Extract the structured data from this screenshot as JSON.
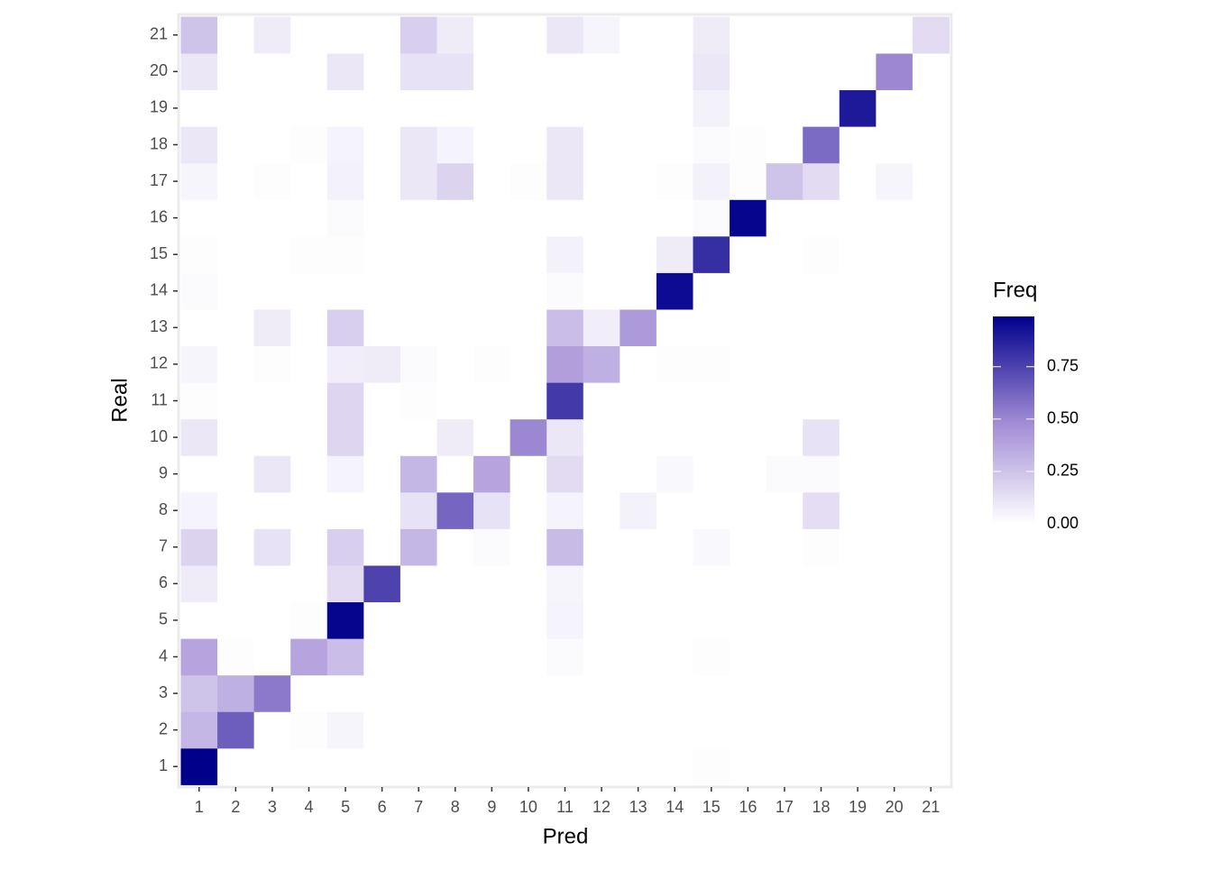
{
  "chart_data": {
    "type": "heatmap",
    "x_label": "Pred",
    "y_label": "Real",
    "legend_title": "Freq",
    "x": [
      1,
      2,
      3,
      4,
      5,
      6,
      7,
      8,
      9,
      10,
      11,
      12,
      13,
      14,
      15,
      16,
      17,
      18,
      19,
      20,
      21
    ],
    "y": [
      1,
      2,
      3,
      4,
      5,
      6,
      7,
      8,
      9,
      10,
      11,
      12,
      13,
      14,
      15,
      16,
      17,
      18,
      19,
      20,
      21
    ],
    "z": [
      [
        0.99,
        0,
        0,
        0,
        0,
        0,
        0,
        0,
        0,
        0,
        0,
        0,
        0,
        0,
        0.01,
        0,
        0,
        0,
        0,
        0,
        0
      ],
      [
        0.3,
        0.65,
        0,
        0.01,
        0.04,
        0,
        0,
        0,
        0,
        0,
        0,
        0,
        0,
        0,
        0,
        0,
        0,
        0,
        0,
        0,
        0
      ],
      [
        0.25,
        0.33,
        0.55,
        0,
        0,
        0,
        0,
        0,
        0,
        0,
        0,
        0,
        0,
        0,
        0,
        0,
        0,
        0,
        0,
        0,
        0
      ],
      [
        0.38,
        0.01,
        0,
        0.38,
        0.27,
        0,
        0,
        0,
        0,
        0,
        0.02,
        0,
        0,
        0,
        0.01,
        0,
        0,
        0,
        0,
        0,
        0
      ],
      [
        0,
        0,
        0,
        0.01,
        0.97,
        0,
        0,
        0,
        0,
        0,
        0.05,
        0,
        0,
        0,
        0,
        0,
        0,
        0,
        0,
        0,
        0
      ],
      [
        0.08,
        0,
        0,
        0,
        0.15,
        0.75,
        0,
        0,
        0,
        0,
        0.04,
        0,
        0,
        0,
        0,
        0,
        0,
        0,
        0,
        0,
        0
      ],
      [
        0.18,
        0,
        0.12,
        0,
        0.2,
        0,
        0.3,
        0,
        0.02,
        0,
        0.28,
        0,
        0,
        0,
        0.03,
        0,
        0,
        0.01,
        0,
        0,
        0
      ],
      [
        0.05,
        0,
        0,
        0,
        0,
        0,
        0.12,
        0.62,
        0.12,
        0,
        0.05,
        0,
        0.06,
        0,
        0,
        0,
        0,
        0.14,
        0,
        0,
        0
      ],
      [
        0,
        0,
        0.1,
        0,
        0.05,
        0,
        0.3,
        0,
        0.38,
        0,
        0.15,
        0,
        0,
        0.03,
        0,
        0,
        0.02,
        0.02,
        0,
        0,
        0
      ],
      [
        0.1,
        0,
        0,
        0,
        0.17,
        0,
        0,
        0.08,
        0,
        0.5,
        0.1,
        0,
        0,
        0,
        0,
        0,
        0,
        0.12,
        0,
        0,
        0
      ],
      [
        0.01,
        0,
        0,
        0,
        0.17,
        0,
        0.01,
        0,
        0,
        0,
        0.78,
        0,
        0,
        0,
        0,
        0,
        0,
        0,
        0,
        0,
        0
      ],
      [
        0.04,
        0,
        0.01,
        0,
        0.07,
        0.08,
        0.02,
        0,
        0.01,
        0,
        0.4,
        0.33,
        0,
        0.01,
        0.01,
        0,
        0,
        0,
        0,
        0,
        0
      ],
      [
        0,
        0,
        0.08,
        0,
        0.2,
        0,
        0,
        0,
        0,
        0,
        0.27,
        0.07,
        0.42,
        0,
        0,
        0,
        0,
        0,
        0,
        0,
        0
      ],
      [
        0.02,
        0,
        0,
        0,
        0,
        0,
        0,
        0,
        0,
        0,
        0.02,
        0,
        0,
        0.95,
        0,
        0,
        0,
        0,
        0,
        0,
        0
      ],
      [
        0.01,
        0,
        0,
        0.01,
        0.01,
        0,
        0,
        0,
        0,
        0,
        0.06,
        0,
        0,
        0.08,
        0.82,
        0,
        0,
        0.01,
        0,
        0,
        0
      ],
      [
        0,
        0,
        0,
        0,
        0.02,
        0,
        0,
        0,
        0,
        0,
        0,
        0,
        0,
        0,
        0.02,
        0.97,
        0,
        0,
        0,
        0,
        0
      ],
      [
        0.04,
        0,
        0.01,
        0,
        0.06,
        0,
        0.1,
        0.18,
        0,
        0.01,
        0.1,
        0,
        0,
        0.01,
        0.06,
        0.01,
        0.25,
        0.15,
        0,
        0.04,
        0
      ],
      [
        0.1,
        0,
        0,
        0.01,
        0.05,
        0,
        0.1,
        0.05,
        0,
        0,
        0.1,
        0,
        0,
        0,
        0.02,
        0.01,
        0,
        0.6,
        0,
        0,
        0
      ],
      [
        0,
        0,
        0,
        0,
        0,
        0,
        0,
        0,
        0,
        0,
        0,
        0,
        0,
        0,
        0.06,
        0,
        0,
        0,
        0.9,
        0,
        0
      ],
      [
        0.1,
        0,
        0,
        0,
        0.1,
        0,
        0.12,
        0.12,
        0,
        0,
        0,
        0,
        0,
        0,
        0.1,
        0,
        0,
        0,
        0,
        0.5,
        0
      ],
      [
        0.25,
        0,
        0.08,
        0,
        0,
        0,
        0.2,
        0.08,
        0,
        0,
        0.1,
        0.04,
        0,
        0,
        0.08,
        0,
        0,
        0,
        0,
        0,
        0.15
      ]
    ],
    "zlim": [
      0,
      0.99
    ],
    "zticks": [
      {
        "value": 0,
        "label": "0.00"
      },
      {
        "value": 0.25,
        "label": "0.25"
      },
      {
        "value": 0.5,
        "label": "0.50"
      },
      {
        "value": 0.75,
        "label": "0.75"
      }
    ],
    "colorscale": [
      "#ffffff",
      "#9e88d4",
      "#00008b"
    ]
  }
}
